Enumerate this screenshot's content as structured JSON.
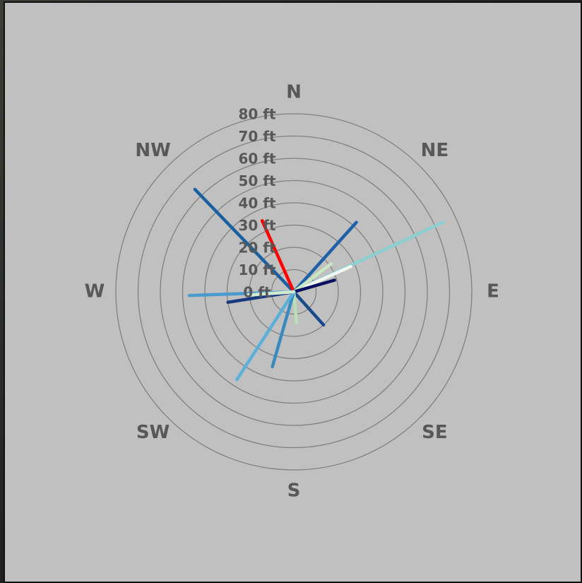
{
  "chart_data": {
    "type": "polar-lines",
    "rlim": [
      0,
      80
    ],
    "rticks": [
      {
        "value": 0,
        "label": "0 ft"
      },
      {
        "value": 10,
        "label": "10 ft"
      },
      {
        "value": 20,
        "label": "20 ft"
      },
      {
        "value": 30,
        "label": "30 ft"
      },
      {
        "value": 40,
        "label": "40 ft"
      },
      {
        "value": 50,
        "label": "50 ft"
      },
      {
        "value": 60,
        "label": "60 ft"
      },
      {
        "value": 70,
        "label": "70 ft"
      },
      {
        "value": 80,
        "label": "80 ft"
      }
    ],
    "thetalim": [
      0,
      360
    ],
    "thetaticks": [
      {
        "value": 0,
        "label": "N"
      },
      {
        "value": 45,
        "label": "NE"
      },
      {
        "value": 90,
        "label": "E"
      },
      {
        "value": 135,
        "label": "SE"
      },
      {
        "value": 180,
        "label": "S"
      },
      {
        "value": 225,
        "label": "SW"
      },
      {
        "value": 270,
        "label": "W"
      },
      {
        "value": 315,
        "label": "NW"
      }
    ],
    "grid": true,
    "series": [
      {
        "color": "#1a5fa0",
        "x": [
          316
        ],
        "values": [
          64
        ]
      },
      {
        "color": "#ff0000",
        "x": [
          336
        ],
        "values": [
          35
        ]
      },
      {
        "color": "#1f60a8",
        "x": [
          42
        ],
        "values": [
          42
        ]
      },
      {
        "color": "#8ccfd0",
        "x": [
          65
        ],
        "values": [
          74
        ]
      },
      {
        "color": "#f0f8f0",
        "x": [
          66
        ],
        "values": [
          28
        ]
      },
      {
        "color": "#c8e6c0",
        "x": [
          53
        ],
        "values": [
          21
        ]
      },
      {
        "color": "#0a1060",
        "x": [
          74
        ],
        "values": [
          19
        ]
      },
      {
        "color": "#174a8a",
        "x": [
          138
        ],
        "values": [
          20
        ]
      },
      {
        "color": "#b8e0b8",
        "x": [
          175
        ],
        "values": [
          14
        ]
      },
      {
        "color": "#3a8ac0",
        "x": [
          196
        ],
        "values": [
          35
        ]
      },
      {
        "color": "#5ab0d8",
        "x": [
          213
        ],
        "values": [
          47
        ]
      },
      {
        "color": "#4a9ad0",
        "x": [
          268
        ],
        "values": [
          47
        ]
      },
      {
        "color": "#1a3a80",
        "x": [
          261
        ],
        "values": [
          30
        ]
      },
      {
        "color": "#d0ecd0",
        "x": [
          266
        ],
        "values": [
          21
        ]
      }
    ]
  }
}
